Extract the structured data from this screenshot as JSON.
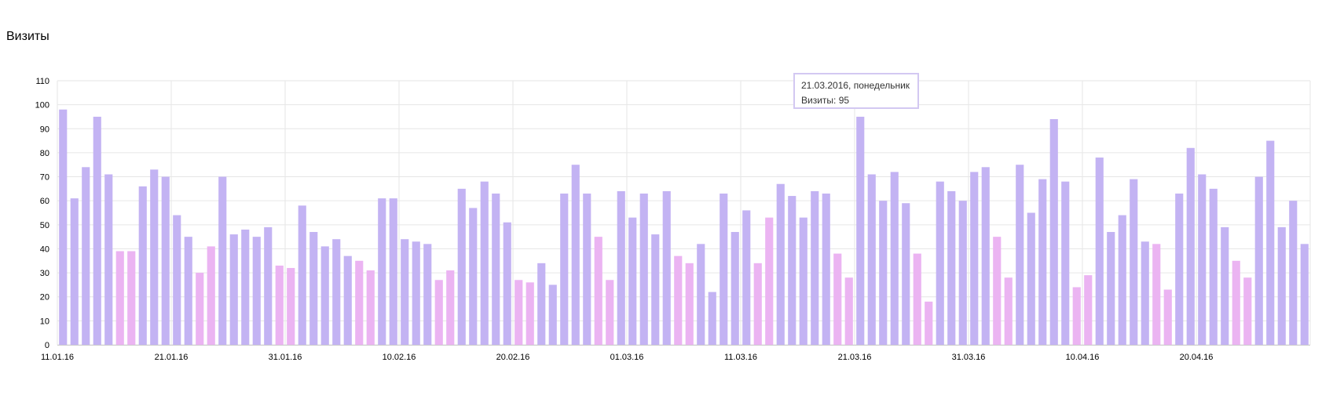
{
  "chart_data": {
    "type": "bar",
    "title": "Визиты",
    "xlabel": "",
    "ylabel": "",
    "ylim": [
      0,
      110
    ],
    "yticks": [
      0,
      10,
      20,
      30,
      40,
      50,
      60,
      70,
      80,
      90,
      100,
      110
    ],
    "grid": true,
    "legend": "none",
    "start_date": "2016-01-11",
    "x_tick_labels": [
      {
        "label": "11.01.16",
        "index": 0,
        "highlight": false
      },
      {
        "label": "21.01.16",
        "index": 10,
        "highlight": false
      },
      {
        "label": "31.01.16",
        "index": 20,
        "highlight": true
      },
      {
        "label": "10.02.16",
        "index": 30,
        "highlight": false
      },
      {
        "label": "20.02.16",
        "index": 40,
        "highlight": false
      },
      {
        "label": "01.03.16",
        "index": 50,
        "highlight": false
      },
      {
        "label": "11.03.16",
        "index": 60,
        "highlight": false
      },
      {
        "label": "21.03.16",
        "index": 70,
        "highlight": false
      },
      {
        "label": "31.03.16",
        "index": 80,
        "highlight": false
      },
      {
        "label": "10.04.16",
        "index": 90,
        "highlight": true
      },
      {
        "label": "20.04.16",
        "index": 100,
        "highlight": false
      }
    ],
    "values": [
      98,
      61,
      74,
      95,
      71,
      39,
      39,
      66,
      73,
      70,
      54,
      45,
      30,
      41,
      70,
      46,
      48,
      45,
      49,
      33,
      32,
      58,
      47,
      41,
      44,
      37,
      35,
      31,
      61,
      61,
      44,
      43,
      42,
      27,
      31,
      65,
      57,
      68,
      63,
      51,
      27,
      26,
      34,
      25,
      63,
      75,
      63,
      45,
      27,
      64,
      53,
      63,
      46,
      64,
      37,
      34,
      42,
      22,
      63,
      47,
      56,
      34,
      53,
      67,
      62,
      53,
      64,
      63,
      38,
      28,
      95,
      71,
      60,
      72,
      59,
      38,
      18,
      68,
      64,
      60,
      72,
      74,
      45,
      28,
      75,
      55,
      69,
      94,
      68,
      24,
      29,
      78,
      47,
      54,
      69,
      43,
      42,
      23,
      63,
      82,
      71,
      65,
      49,
      35,
      28,
      70,
      85,
      49,
      60,
      42
    ],
    "colors": {
      "weekday": "#c3b3f3",
      "weekend": "#ebb4f2",
      "grid": "#e6e6e6",
      "axis": "#cccccc",
      "tick_text": "#000000",
      "highlight_tick_text": "#a8181e"
    },
    "tooltip": {
      "date_line": "21.03.2016, понедельник",
      "value_line": "Визиты: 95",
      "index": 70
    }
  }
}
